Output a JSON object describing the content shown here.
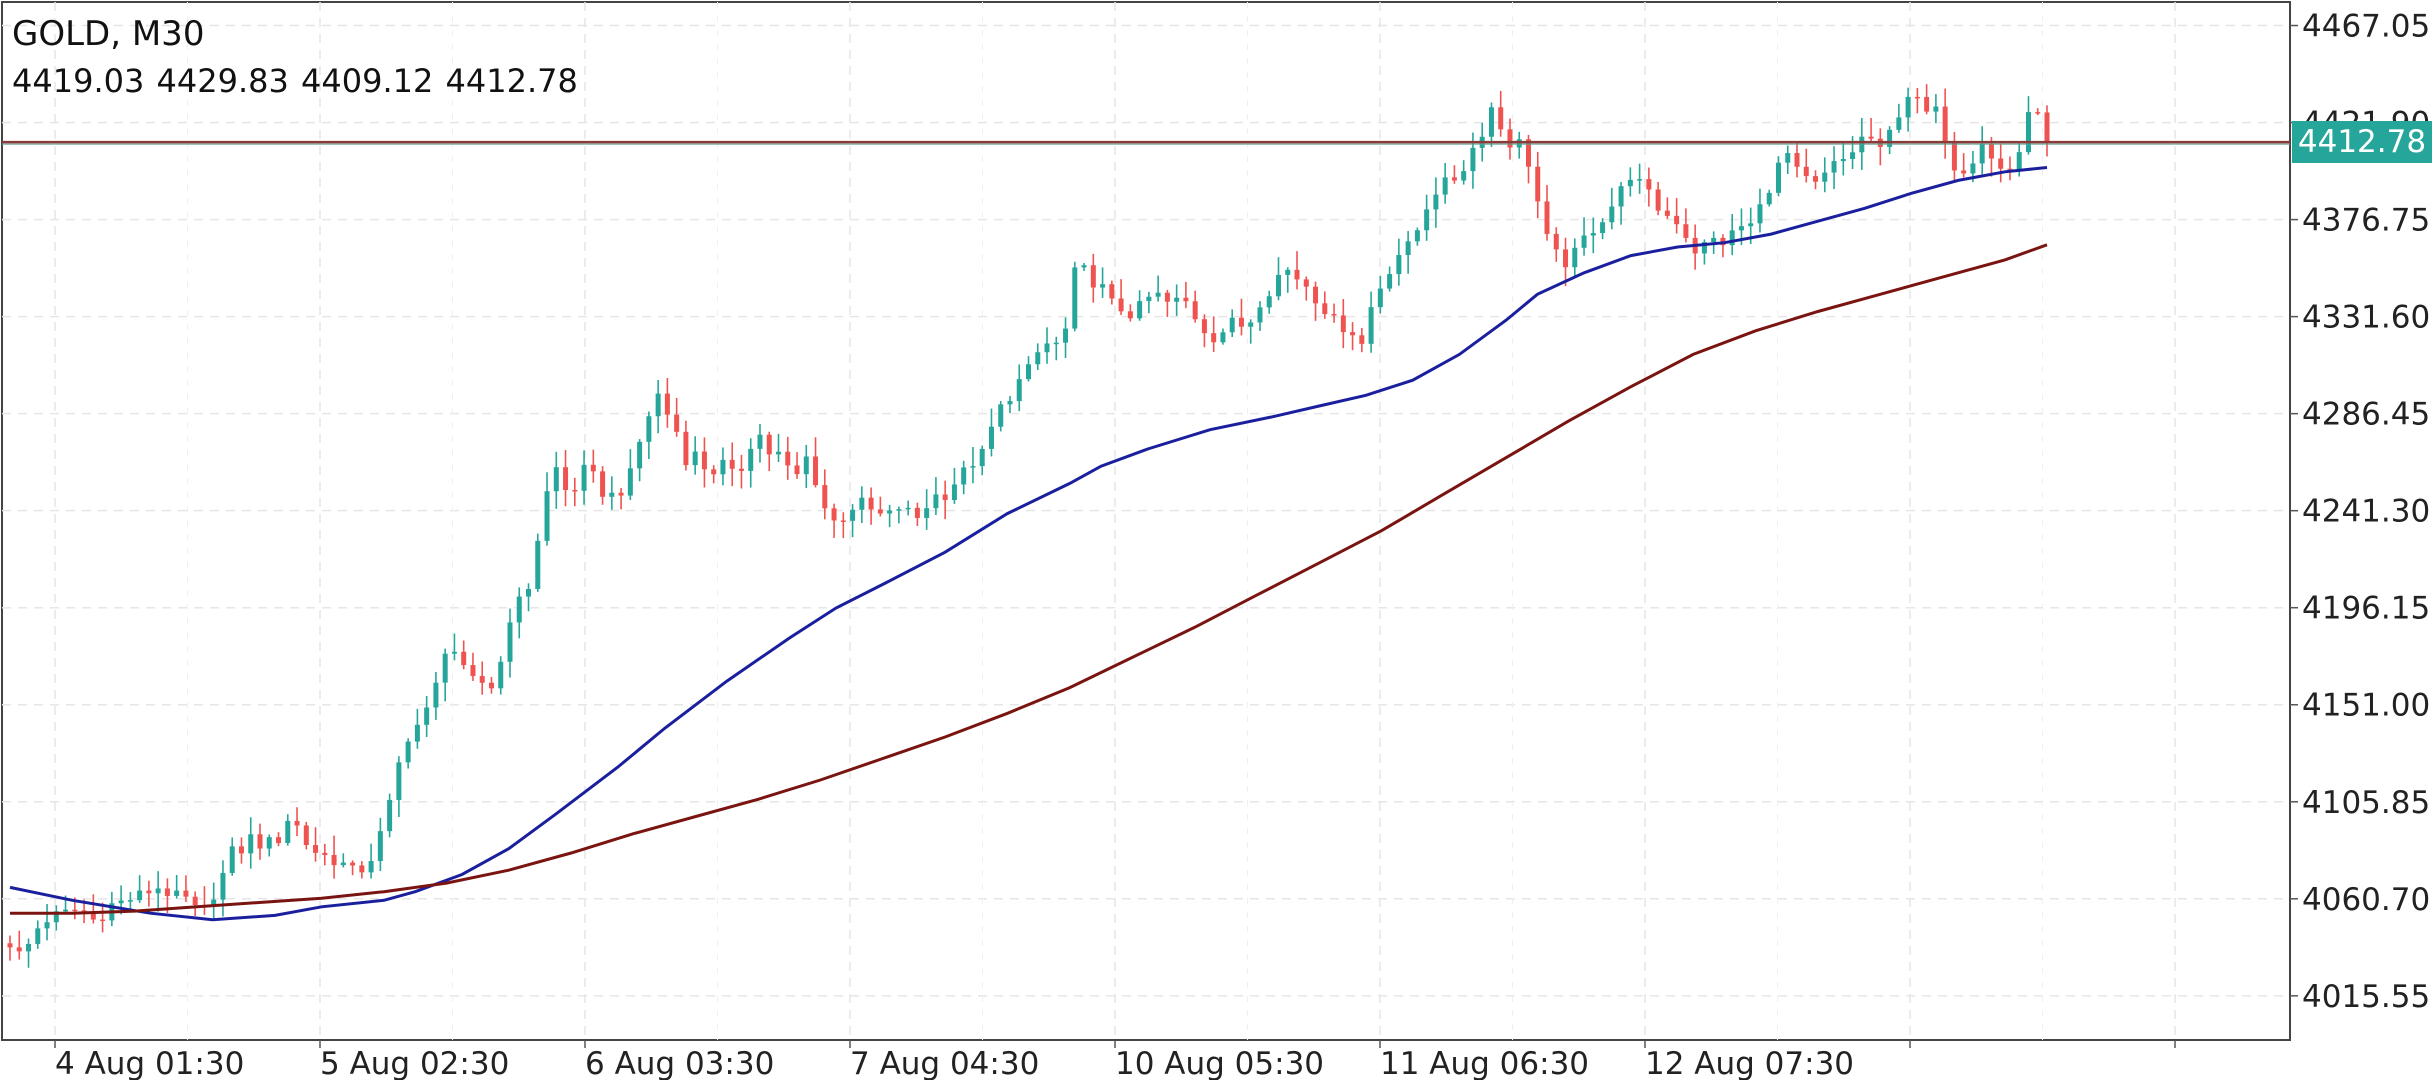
{
  "header": {
    "symbol_timeframe": "GOLD, M30",
    "ohlc": "4419.03 4429.83 4409.12 4412.78"
  },
  "current_price": {
    "label": "4412.78",
    "value": 4412.78
  },
  "colors": {
    "up_candle": "#26a69a",
    "down_candle": "#ef5350",
    "ma_fast": "#1a1f9e",
    "ma_slow": "#7a1410",
    "price_line": "#8b3a3a",
    "price_tag": "#26a69a",
    "grid": "#e6e6e6",
    "axis": "#555555"
  },
  "chart_data": {
    "type": "candlestick",
    "title": "GOLD, M30",
    "ylim": [
      3995,
      4478
    ],
    "y_ticks": [
      "4467.05",
      "4421.90",
      "4376.75",
      "4331.60",
      "4286.45",
      "4241.30",
      "4196.15",
      "4151.00",
      "4105.85",
      "4060.70",
      "4015.55"
    ],
    "x_tick_labels": [
      "4 Aug 01:30",
      "5 Aug 02:30",
      "6 Aug 03:30",
      "7 Aug 04:30",
      "10 Aug 05:30",
      "11 Aug 06:30",
      "12 Aug 07:30"
    ],
    "grid": true,
    "price_series": [
      [
        0,
        4040
      ],
      [
        8,
        4033
      ],
      [
        16,
        4046
      ],
      [
        25,
        4052
      ],
      [
        35,
        4054
      ],
      [
        45,
        4056
      ],
      [
        55,
        4050
      ],
      [
        65,
        4058
      ],
      [
        75,
        4060
      ],
      [
        85,
        4063
      ],
      [
        95,
        4066
      ],
      [
        105,
        4062
      ],
      [
        115,
        4060
      ],
      [
        122,
        4052
      ],
      [
        130,
        4062
      ],
      [
        138,
        4074
      ],
      [
        145,
        4087
      ],
      [
        150,
        4082
      ],
      [
        155,
        4090
      ],
      [
        160,
        4086
      ],
      [
        165,
        4088
      ],
      [
        170,
        4084
      ],
      [
        175,
        4094
      ],
      [
        180,
        4100
      ],
      [
        186,
        4092
      ],
      [
        192,
        4084
      ],
      [
        198,
        4082
      ],
      [
        204,
        4080
      ],
      [
        210,
        4078
      ],
      [
        216,
        4076
      ],
      [
        222,
        4072
      ],
      [
        228,
        4076
      ],
      [
        234,
        4082
      ],
      [
        240,
        4096
      ],
      [
        245,
        4108
      ],
      [
        250,
        4125
      ],
      [
        255,
        4136
      ],
      [
        260,
        4140
      ],
      [
        265,
        4146
      ],
      [
        270,
        4150
      ],
      [
        274,
        4162
      ],
      [
        278,
        4176
      ],
      [
        282,
        4180
      ],
      [
        286,
        4175
      ],
      [
        290,
        4166
      ],
      [
        294,
        4168
      ],
      [
        298,
        4160
      ],
      [
        302,
        4162
      ],
      [
        308,
        4158
      ],
      [
        314,
        4168
      ],
      [
        318,
        4182
      ],
      [
        322,
        4196
      ],
      [
        326,
        4200
      ],
      [
        330,
        4194
      ],
      [
        334,
        4212
      ],
      [
        338,
        4226
      ],
      [
        342,
        4240
      ],
      [
        346,
        4255
      ],
      [
        350,
        4262
      ],
      [
        355,
        4252
      ],
      [
        360,
        4248
      ],
      [
        365,
        4256
      ],
      [
        370,
        4262
      ],
      [
        375,
        4256
      ],
      [
        380,
        4250
      ],
      [
        385,
        4248
      ],
      [
        390,
        4250
      ],
      [
        395,
        4252
      ],
      [
        400,
        4262
      ],
      [
        405,
        4276
      ],
      [
        410,
        4286
      ],
      [
        414,
        4298
      ],
      [
        418,
        4292
      ],
      [
        422,
        4286
      ],
      [
        427,
        4280
      ],
      [
        432,
        4268
      ],
      [
        436,
        4262
      ],
      [
        440,
        4268
      ],
      [
        445,
        4262
      ],
      [
        450,
        4258
      ],
      [
        455,
        4264
      ],
      [
        460,
        4262
      ],
      [
        465,
        4256
      ],
      [
        470,
        4262
      ],
      [
        475,
        4272
      ],
      [
        479,
        4280
      ],
      [
        484,
        4272
      ],
      [
        489,
        4266
      ],
      [
        494,
        4268
      ],
      [
        498,
        4262
      ],
      [
        503,
        4256
      ],
      [
        508,
        4260
      ],
      [
        512,
        4268
      ],
      [
        516,
        4258
      ],
      [
        520,
        4246
      ],
      [
        525,
        4240
      ],
      [
        529,
        4236
      ],
      [
        534,
        4238
      ],
      [
        539,
        4242
      ],
      [
        545,
        4246
      ],
      [
        550,
        4242
      ],
      [
        556,
        4240
      ],
      [
        561,
        4238
      ],
      [
        566,
        4240
      ],
      [
        572,
        4244
      ],
      [
        577,
        4240
      ],
      [
        582,
        4238
      ],
      [
        587,
        4242
      ],
      [
        592,
        4250
      ],
      [
        597,
        4246
      ],
      [
        603,
        4252
      ],
      [
        608,
        4256
      ],
      [
        613,
        4260
      ],
      [
        618,
        4264
      ],
      [
        623,
        4266
      ],
      [
        628,
        4276
      ],
      [
        633,
        4286
      ],
      [
        638,
        4292
      ],
      [
        643,
        4296
      ],
      [
        648,
        4302
      ],
      [
        653,
        4306
      ],
      [
        658,
        4314
      ],
      [
        663,
        4316
      ],
      [
        668,
        4322
      ],
      [
        672,
        4318
      ],
      [
        677,
        4324
      ],
      [
        681,
        4344
      ],
      [
        685,
        4358
      ],
      [
        690,
        4352
      ],
      [
        695,
        4348
      ],
      [
        700,
        4346
      ],
      [
        705,
        4340
      ],
      [
        710,
        4334
      ],
      [
        715,
        4336
      ],
      [
        720,
        4332
      ],
      [
        725,
        4336
      ],
      [
        730,
        4340
      ],
      [
        735,
        4342
      ],
      [
        740,
        4340
      ],
      [
        745,
        4336
      ],
      [
        750,
        4340
      ],
      [
        755,
        4338
      ],
      [
        760,
        4332
      ],
      [
        766,
        4326
      ],
      [
        772,
        4322
      ],
      [
        777,
        4324
      ],
      [
        782,
        4328
      ],
      [
        788,
        4330
      ],
      [
        793,
        4324
      ],
      [
        798,
        4334
      ],
      [
        803,
        4340
      ],
      [
        808,
        4344
      ],
      [
        813,
        4350
      ],
      [
        818,
        4354
      ],
      [
        823,
        4352
      ],
      [
        828,
        4348
      ],
      [
        833,
        4346
      ],
      [
        838,
        4340
      ],
      [
        843,
        4336
      ],
      [
        848,
        4330
      ],
      [
        853,
        4328
      ],
      [
        858,
        4326
      ],
      [
        863,
        4324
      ],
      [
        868,
        4318
      ],
      [
        872,
        4334
      ],
      [
        877,
        4342
      ],
      [
        882,
        4350
      ],
      [
        887,
        4356
      ],
      [
        892,
        4362
      ],
      [
        897,
        4364
      ],
      [
        902,
        4370
      ],
      [
        907,
        4380
      ],
      [
        912,
        4388
      ],
      [
        917,
        4392
      ],
      [
        922,
        4394
      ],
      [
        927,
        4396
      ],
      [
        932,
        4400
      ],
      [
        937,
        4408
      ],
      [
        942,
        4414
      ],
      [
        946,
        4420
      ],
      [
        950,
        4430
      ],
      [
        954,
        4422
      ],
      [
        958,
        4418
      ],
      [
        962,
        4412
      ],
      [
        966,
        4416
      ],
      [
        970,
        4410
      ],
      [
        974,
        4404
      ],
      [
        978,
        4394
      ],
      [
        982,
        4378
      ],
      [
        986,
        4368
      ],
      [
        990,
        4362
      ],
      [
        995,
        4358
      ],
      [
        1000,
        4356
      ],
      [
        1005,
        4362
      ],
      [
        1010,
        4368
      ],
      [
        1015,
        4372
      ],
      [
        1020,
        4376
      ],
      [
        1025,
        4380
      ],
      [
        1030,
        4386
      ],
      [
        1035,
        4392
      ],
      [
        1040,
        4398
      ],
      [
        1045,
        4394
      ],
      [
        1050,
        4390
      ],
      [
        1055,
        4384
      ],
      [
        1060,
        4380
      ],
      [
        1065,
        4378
      ],
      [
        1070,
        4376
      ],
      [
        1075,
        4370
      ],
      [
        1080,
        4362
      ],
      [
        1085,
        4364
      ],
      [
        1090,
        4366
      ],
      [
        1095,
        4368
      ],
      [
        1100,
        4366
      ],
      [
        1105,
        4370
      ],
      [
        1110,
        4374
      ],
      [
        1115,
        4372
      ],
      [
        1120,
        4378
      ],
      [
        1125,
        4386
      ],
      [
        1130,
        4394
      ],
      [
        1135,
        4402
      ],
      [
        1140,
        4408
      ],
      [
        1145,
        4400
      ],
      [
        1150,
        4396
      ],
      [
        1155,
        4394
      ],
      [
        1160,
        4392
      ],
      [
        1165,
        4398
      ],
      [
        1170,
        4402
      ],
      [
        1175,
        4404
      ],
      [
        1180,
        4406
      ],
      [
        1185,
        4412
      ],
      [
        1190,
        4416
      ],
      [
        1195,
        4414
      ],
      [
        1200,
        4408
      ],
      [
        1205,
        4416
      ],
      [
        1210,
        4422
      ],
      [
        1215,
        4434
      ],
      [
        1220,
        4436
      ],
      [
        1225,
        4430
      ],
      [
        1230,
        4426
      ],
      [
        1235,
        4428
      ],
      [
        1240,
        4420
      ],
      [
        1245,
        4406
      ],
      [
        1250,
        4398
      ],
      [
        1255,
        4402
      ],
      [
        1260,
        4406
      ],
      [
        1265,
        4414
      ],
      [
        1270,
        4406
      ],
      [
        1275,
        4402
      ],
      [
        1280,
        4398
      ],
      [
        1285,
        4402
      ],
      [
        1290,
        4410
      ],
      [
        1295,
        4424
      ],
      [
        1300,
        4430
      ],
      [
        1304,
        4426
      ],
      [
        1307,
        4412.78
      ]
    ],
    "series": [
      {
        "kind": "moving-average-fast",
        "points": [
          [
            0,
            4066
          ],
          [
            40,
            4060
          ],
          [
            90,
            4054
          ],
          [
            130,
            4051
          ],
          [
            170,
            4053
          ],
          [
            200,
            4057
          ],
          [
            240,
            4060
          ],
          [
            260,
            4064
          ],
          [
            290,
            4072
          ],
          [
            320,
            4084
          ],
          [
            350,
            4100
          ],
          [
            390,
            4122
          ],
          [
            420,
            4140
          ],
          [
            460,
            4162
          ],
          [
            500,
            4182
          ],
          [
            530,
            4196
          ],
          [
            560,
            4207
          ],
          [
            600,
            4222
          ],
          [
            640,
            4240
          ],
          [
            680,
            4254
          ],
          [
            700,
            4262
          ],
          [
            730,
            4270
          ],
          [
            770,
            4279
          ],
          [
            810,
            4285
          ],
          [
            840,
            4290
          ],
          [
            870,
            4295
          ],
          [
            900,
            4302
          ],
          [
            930,
            4314
          ],
          [
            960,
            4330
          ],
          [
            980,
            4342
          ],
          [
            1010,
            4352
          ],
          [
            1040,
            4360
          ],
          [
            1070,
            4364
          ],
          [
            1100,
            4366
          ],
          [
            1130,
            4370
          ],
          [
            1160,
            4376
          ],
          [
            1190,
            4382
          ],
          [
            1220,
            4389
          ],
          [
            1250,
            4395
          ],
          [
            1280,
            4399
          ],
          [
            1307,
            4401
          ]
        ]
      },
      {
        "kind": "moving-average-slow",
        "points": [
          [
            0,
            4054
          ],
          [
            40,
            4054
          ],
          [
            80,
            4055
          ],
          [
            120,
            4057
          ],
          [
            160,
            4059
          ],
          [
            200,
            4061
          ],
          [
            240,
            4064
          ],
          [
            280,
            4068
          ],
          [
            320,
            4074
          ],
          [
            360,
            4082
          ],
          [
            400,
            4091
          ],
          [
            440,
            4099
          ],
          [
            480,
            4107
          ],
          [
            520,
            4116
          ],
          [
            560,
            4126
          ],
          [
            600,
            4136
          ],
          [
            640,
            4147
          ],
          [
            680,
            4159
          ],
          [
            720,
            4173
          ],
          [
            760,
            4187
          ],
          [
            800,
            4202
          ],
          [
            840,
            4217
          ],
          [
            880,
            4232
          ],
          [
            920,
            4249
          ],
          [
            960,
            4266
          ],
          [
            1000,
            4283
          ],
          [
            1040,
            4299
          ],
          [
            1080,
            4314
          ],
          [
            1120,
            4325
          ],
          [
            1160,
            4334
          ],
          [
            1200,
            4342
          ],
          [
            1240,
            4350
          ],
          [
            1280,
            4358
          ],
          [
            1307,
            4365
          ]
        ]
      }
    ]
  }
}
